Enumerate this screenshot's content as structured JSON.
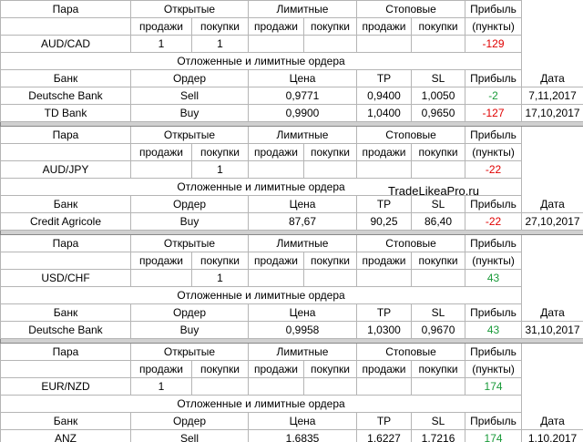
{
  "blocks": [
    {
      "header": {
        "pair": "Пара",
        "open": "Открытые",
        "limit": "Лимитные",
        "stop": "Стоповые",
        "profit": "Прибыль"
      },
      "subheader": [
        "продажи",
        "покупки",
        "продажи",
        "покупки",
        "продажи",
        "покупки",
        "(пункты)"
      ],
      "pair_row": {
        "pair": "AUD/CAD",
        "cells": [
          "1",
          "1",
          null,
          null,
          null,
          null
        ],
        "profit": "-129",
        "profit_color": "#e00000"
      },
      "orders_title": "Отложенные и лимитные ордера",
      "orders_header": {
        "bank": "Банк",
        "order": "Ордер",
        "price": "Цена",
        "tp": "TP",
        "sl": "SL",
        "profit": "Прибыль",
        "date": "Дата"
      },
      "orders": [
        {
          "bank": "Deutsche Bank",
          "order": "Sell",
          "price": "0,9771",
          "tp": "0,9400",
          "sl": "1,0050",
          "profit": "-2",
          "profit_color": "#1a9a3a",
          "date": "7,11,2017"
        },
        {
          "bank": "TD Bank",
          "order": "Buy",
          "price": "0,9900",
          "tp": "1,0400",
          "sl": "0,9650",
          "profit": "-127",
          "profit_color": "#e00000",
          "date": "17,10,2017"
        }
      ]
    },
    {
      "header": {
        "pair": "Пара",
        "open": "Открытые",
        "limit": "Лимитные",
        "stop": "Стоповые",
        "profit": "Прибыль"
      },
      "subheader": [
        "продажи",
        "покупки",
        "продажи",
        "покупки",
        "продажи",
        "покупки",
        "(пункты)"
      ],
      "pair_row": {
        "pair": "AUD/JPY",
        "cells": [
          null,
          "1",
          null,
          null,
          null,
          null
        ],
        "profit": "-22",
        "profit_color": "#e00000"
      },
      "orders_title": "Отложенные и лимитные ордера",
      "watermark": "TradeLikeaPro.ru",
      "orders_header": {
        "bank": "Банк",
        "order": "Ордер",
        "price": "Цена",
        "tp": "TP",
        "sl": "SL",
        "profit": "Прибыль",
        "date": "Дата"
      },
      "orders": [
        {
          "bank": "Credit Agricole",
          "order": "Buy",
          "price": "87,67",
          "tp": "90,25",
          "sl": "86,40",
          "profit": "-22",
          "profit_color": "#e00000",
          "date": "27,10,2017"
        }
      ]
    },
    {
      "header": {
        "pair": "Пара",
        "open": "Открытые",
        "limit": "Лимитные",
        "stop": "Стоповые",
        "profit": "Прибыль"
      },
      "subheader": [
        "продажи",
        "покупки",
        "продажи",
        "покупки",
        "продажи",
        "покупки",
        "(пункты)"
      ],
      "pair_row": {
        "pair": "USD/CHF",
        "cells": [
          null,
          "1",
          null,
          null,
          null,
          null
        ],
        "profit": "43",
        "profit_color": "#1a9a3a"
      },
      "orders_title": "Отложенные и лимитные ордера",
      "orders_header": {
        "bank": "Банк",
        "order": "Ордер",
        "price": "Цена",
        "tp": "TP",
        "sl": "SL",
        "profit": "Прибыль",
        "date": "Дата"
      },
      "orders": [
        {
          "bank": "Deutsche Bank",
          "order": "Buy",
          "price": "0,9958",
          "tp": "1,0300",
          "sl": "0,9670",
          "profit": "43",
          "profit_color": "#1a9a3a",
          "date": "31,10,2017"
        }
      ]
    },
    {
      "header": {
        "pair": "Пара",
        "open": "Открытые",
        "limit": "Лимитные",
        "stop": "Стоповые",
        "profit": "Прибыль"
      },
      "subheader": [
        "продажи",
        "покупки",
        "продажи",
        "покупки",
        "продажи",
        "покупки",
        "(пункты)"
      ],
      "pair_row": {
        "pair": "EUR/NZD",
        "cells": [
          "1",
          null,
          null,
          null,
          null,
          null
        ],
        "profit": "174",
        "profit_color": "#1a9a3a"
      },
      "orders_title": "Отложенные и лимитные ордера",
      "orders_header": {
        "bank": "Банк",
        "order": "Ордер",
        "price": "Цена",
        "tp": "TP",
        "sl": "SL",
        "profit": "Прибыль",
        "date": "Дата"
      },
      "orders": [
        {
          "bank": "ANZ",
          "order": "Sell",
          "price": "1,6835",
          "tp": "1,6227",
          "sl": "1,7216",
          "profit": "174",
          "profit_color": "#1a9a3a",
          "date": "1,10,2017"
        }
      ]
    }
  ]
}
